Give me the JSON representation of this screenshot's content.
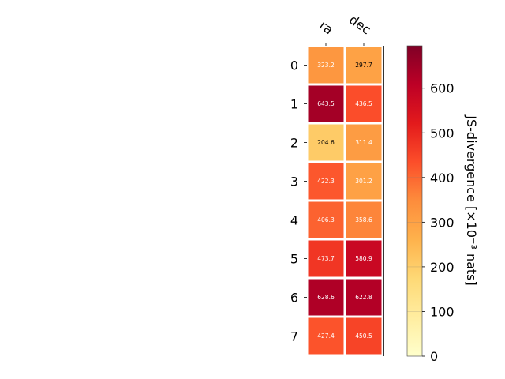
{
  "chart_data": {
    "type": "heatmap",
    "columns": [
      "ra",
      "dec"
    ],
    "rows": [
      "0",
      "1",
      "2",
      "3",
      "4",
      "5",
      "6",
      "7"
    ],
    "values": [
      [
        323.2,
        297.7
      ],
      [
        643.5,
        436.5
      ],
      [
        204.6,
        311.4
      ],
      [
        422.3,
        301.2
      ],
      [
        406.3,
        358.6
      ],
      [
        473.7,
        580.9
      ],
      [
        628.6,
        622.8
      ],
      [
        427.4,
        450.5
      ]
    ],
    "value_labels": [
      [
        "323.2",
        "297.7"
      ],
      [
        "643.5",
        "436.5"
      ],
      [
        "204.6",
        "311.4"
      ],
      [
        "422.3",
        "301.2"
      ],
      [
        "406.3",
        "358.6"
      ],
      [
        "473.7",
        "580.9"
      ],
      [
        "628.6",
        "622.8"
      ],
      [
        "427.4",
        "450.5"
      ]
    ],
    "colormap": "YlOrRd",
    "colorbar": {
      "label": "JS-divergence [×10⁻³ nats]",
      "range": [
        0,
        695
      ],
      "ticks": [
        "0",
        "100",
        "200",
        "300",
        "400",
        "500",
        "600"
      ]
    },
    "grid": false
  }
}
